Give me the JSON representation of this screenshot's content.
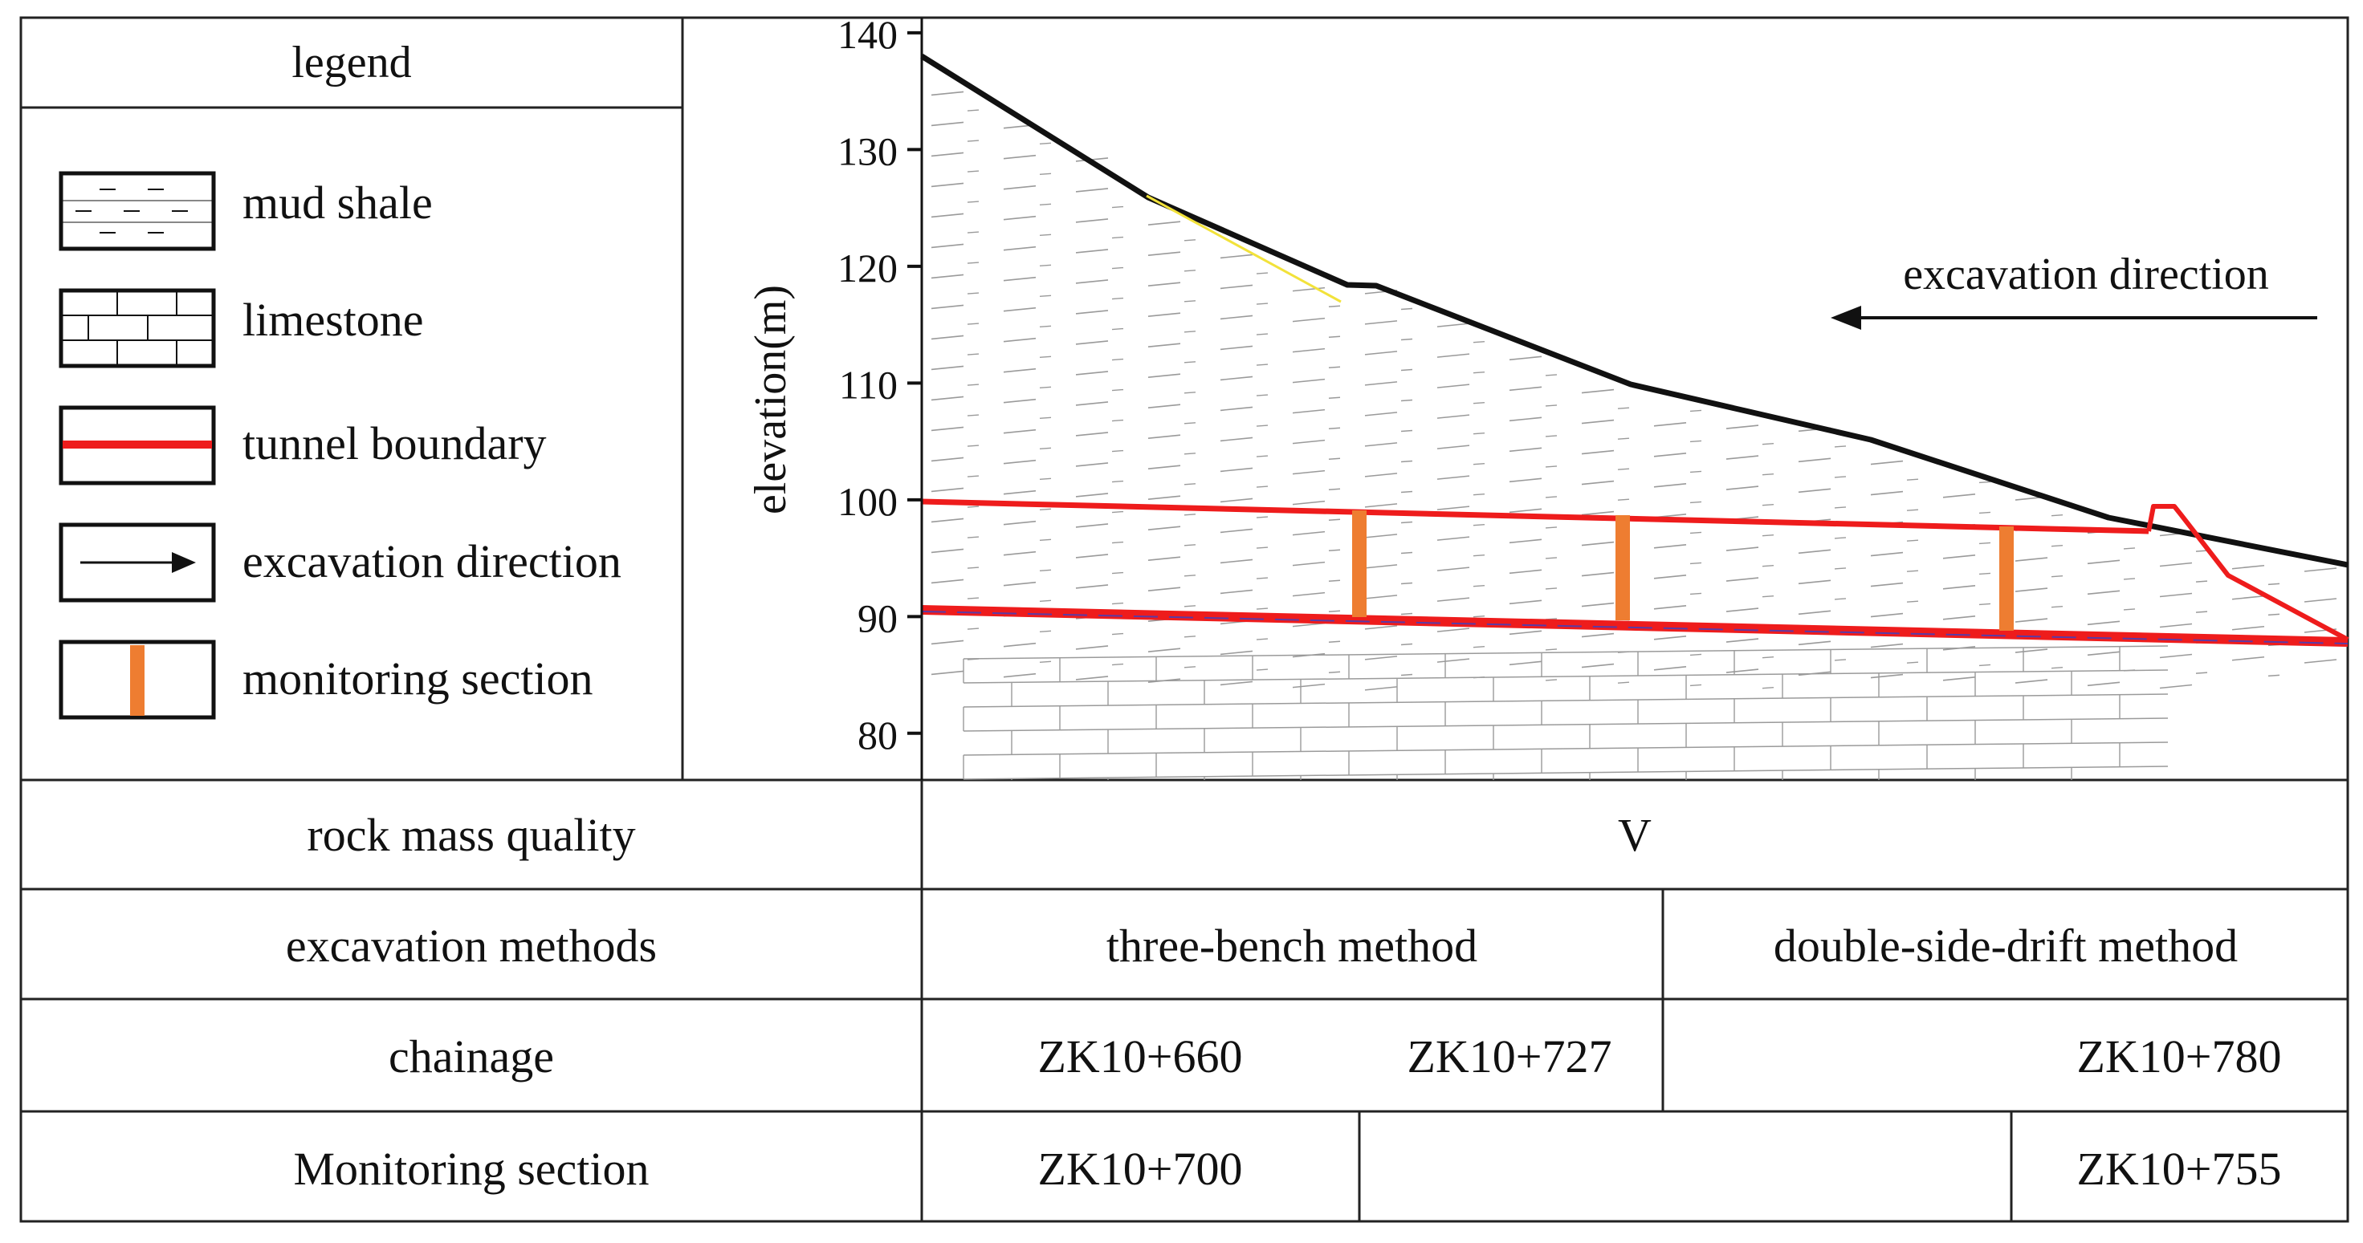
{
  "legend": {
    "title": "legend",
    "items": [
      {
        "icon": "mud-shale-swatch",
        "label": "mud shale"
      },
      {
        "icon": "limestone-swatch",
        "label": "limestone"
      },
      {
        "icon": "tunnel-boundary-swatch",
        "label": "tunnel boundary"
      },
      {
        "icon": "arrow-icon",
        "label": "excavation direction"
      },
      {
        "icon": "monitoring-section-swatch",
        "label": "monitoring section"
      }
    ]
  },
  "profile": {
    "ylabel": "elevation(m)",
    "yticks": [
      140,
      130,
      120,
      110,
      100,
      90,
      80
    ],
    "ylim": [
      76,
      141.3
    ],
    "direction_label": "excavation direction",
    "colors": {
      "ground_line": "#111111",
      "tunnel": "#ee1c1c",
      "monitor": "#ee7d31",
      "yellow_line": "#f2e23a",
      "hatch": "#9a9a9a"
    }
  },
  "table": {
    "rows": [
      {
        "label": "rock mass quality",
        "cells": [
          "V"
        ]
      },
      {
        "label": "excavation methods",
        "cells": [
          "three-bench method",
          "double-side-drift method"
        ]
      },
      {
        "label": "chainage",
        "cells": [
          "ZK10+660",
          "ZK10+727",
          "ZK10+780"
        ]
      },
      {
        "label": "Monitoring section",
        "cells": [
          "ZK10+700",
          "",
          "ZK10+755"
        ]
      }
    ]
  }
}
